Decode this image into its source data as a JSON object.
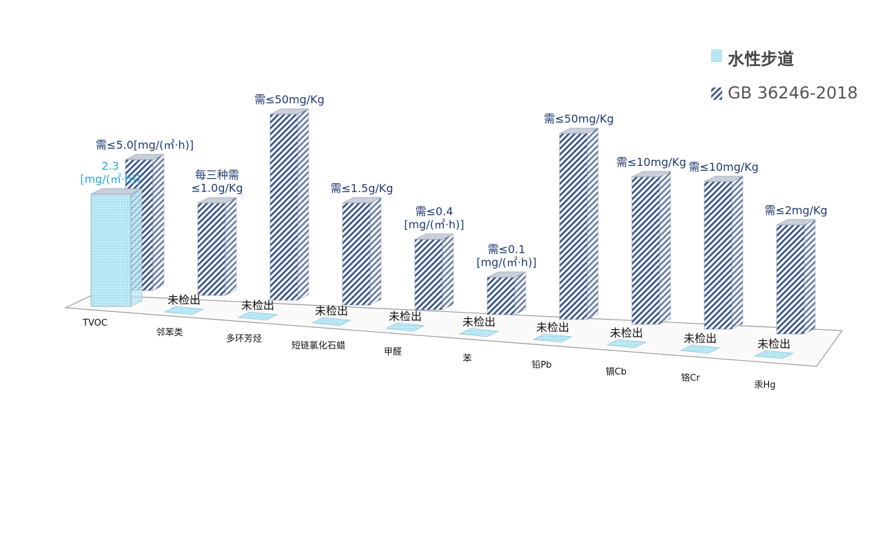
{
  "chart_data": {
    "type": "bar3d",
    "categories": [
      "TVOC",
      "邻苯类",
      "多环芳烃",
      "短链氯化石蜡",
      "甲醛",
      "苯",
      "铅Pb",
      "镉Cb",
      "铬Cr",
      "汞Hg"
    ],
    "series": [
      {
        "name": "GB 36246-2018",
        "color": "#2c4a7a",
        "values": [
          5.0,
          1.0,
          50,
          1.5,
          0.4,
          0.1,
          50,
          10,
          10,
          2
        ],
        "value_labels": [
          "需≤5.0[mg/(㎡·h)]",
          "每三种需\n≤1.0g/Kg",
          "需≤50mg/Kg",
          "需≤1.5g/Kg",
          "需≤0.4\n[mg/(㎡·h)]",
          "需≤0.1\n[mg/(㎡·h)]",
          "需≤50mg/Kg",
          "需≤10mg/Kg",
          "需≤10mg/Kg",
          "需≤2mg/Kg"
        ]
      },
      {
        "name": "水性步道",
        "color": "#9fdcec",
        "values": [
          2.3,
          0,
          0,
          0,
          0,
          0,
          0,
          0,
          0,
          0
        ],
        "value_labels": [
          "2.3\n[mg/(㎡·h)]",
          "未检出",
          "未检出",
          "未检出",
          "未检出",
          "未检出",
          "未检出",
          "未检出",
          "未检出",
          "未检出"
        ]
      }
    ]
  }
}
